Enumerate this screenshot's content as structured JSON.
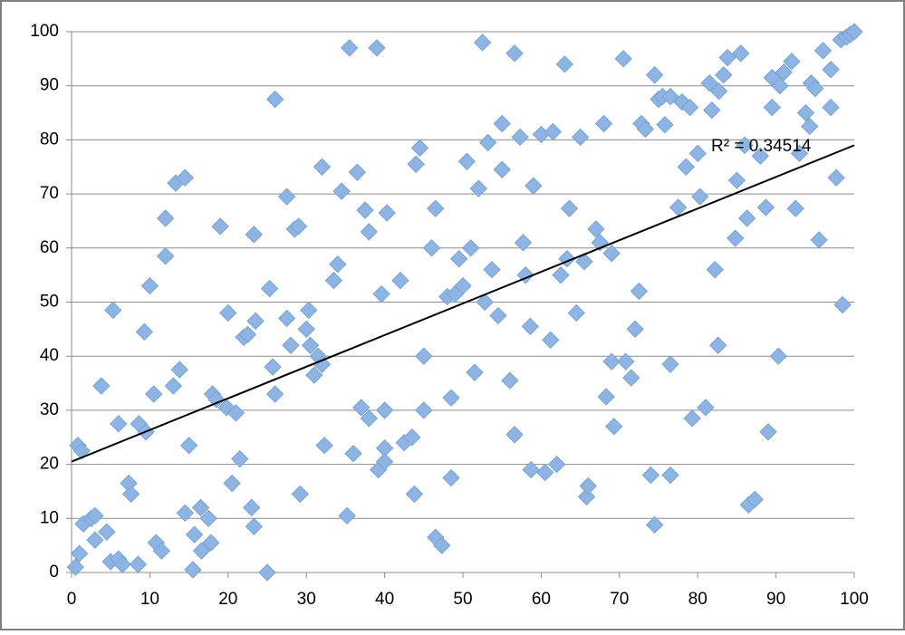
{
  "chart_data": {
    "type": "scatter",
    "annotation": "R² = 0.34514",
    "color": "#8db4e2",
    "trendline": {
      "x": [
        0,
        100
      ],
      "y": [
        20.5,
        79
      ],
      "color": "#000000"
    },
    "x": [
      0.5,
      1,
      0.8,
      1.3,
      1.5,
      2.5,
      3,
      3,
      3.8,
      4.5,
      5,
      5.3,
      6,
      6,
      6.5,
      7.3,
      7.6,
      8.5,
      8.6,
      9.3,
      9.5,
      10,
      10.5,
      10.8,
      11.5,
      12,
      12,
      13,
      13.3,
      13.8,
      14.5,
      14.5,
      15,
      15.5,
      15.7,
      16.5,
      16.6,
      17.5,
      17.8,
      18,
      18.5,
      19,
      19.8,
      20,
      20.5,
      21,
      21.5,
      22,
      22.5,
      23,
      23.3,
      23.3,
      23.5,
      25,
      25.3,
      25.7,
      26,
      26,
      27.5,
      27.5,
      28,
      28.5,
      29,
      29.2,
      30,
      30.3,
      30.5,
      31,
      31.5,
      32,
      32,
      32.3,
      33.5,
      34,
      34.5,
      35.2,
      35.5,
      36,
      36.5,
      37,
      37.5,
      38,
      38,
      39,
      39.2,
      39.6,
      40,
      40,
      40,
      40.3,
      42,
      42.5,
      43.5,
      43.8,
      44,
      44.5,
      45,
      45,
      46,
      46.5,
      46.5,
      47.3,
      48,
      48.5,
      48.5,
      49,
      49.5,
      50,
      50.5,
      51,
      51.5,
      52,
      52.5,
      52.8,
      53.2,
      53.7,
      54.5,
      55,
      55,
      56,
      56.6,
      56.6,
      57.3,
      57.7,
      58,
      58.6,
      58.7,
      59,
      60,
      60.5,
      61.2,
      61.5,
      62,
      62.5,
      63,
      63.3,
      63.6,
      64.5,
      65,
      65.5,
      65.8,
      66,
      67,
      67.5,
      68,
      68.3,
      69,
      69,
      69.3,
      70.5,
      70.8,
      71.5,
      72,
      72.5,
      72.8,
      73.3,
      74,
      74.5,
      74.5,
      75,
      75.5,
      75.8,
      76.5,
      76.5,
      76.5,
      77.5,
      78,
      78.5,
      79,
      79.3,
      80,
      80.3,
      81,
      81.5,
      81.8,
      82.2,
      82.6,
      82.7,
      83.3,
      83.8,
      84.8,
      85,
      85.5,
      86,
      86.3,
      86.5,
      87.3,
      88,
      88.7,
      89,
      89.5,
      89.5,
      90.3,
      90.5,
      91,
      92,
      92.5,
      93,
      93.8,
      94.3,
      94.5,
      95,
      95.5,
      96,
      97,
      97,
      97.7,
      98.3,
      98.5,
      99,
      99.5,
      100
    ],
    "values": [
      1,
      3.5,
      23.5,
      22.5,
      9,
      10,
      10.5,
      6,
      34.5,
      7.5,
      2,
      48.5,
      2.5,
      27.5,
      1.5,
      16.5,
      14.5,
      1.5,
      27.5,
      44.5,
      26,
      53,
      33,
      5.5,
      4,
      65.5,
      58.5,
      34.5,
      72,
      37.5,
      73,
      11,
      23.5,
      0.5,
      7,
      12,
      4,
      10,
      5.5,
      33,
      32,
      64,
      30.5,
      48,
      16.5,
      29.5,
      21,
      43.5,
      44,
      12,
      8.5,
      62.5,
      46.5,
      0,
      52.5,
      38,
      33,
      87.5,
      47,
      69.5,
      42,
      63.5,
      64,
      14.5,
      45,
      48.5,
      42,
      36.5,
      40,
      75,
      38.5,
      23.5,
      54,
      57,
      70.5,
      10.5,
      97,
      22,
      74,
      30.5,
      67,
      63,
      28.5,
      97,
      19,
      51.5,
      23,
      20.5,
      30,
      66.5,
      54,
      24,
      25,
      14.5,
      75.5,
      78.5,
      40,
      30,
      60,
      67.3,
      6.5,
      5,
      51,
      32.3,
      17.5,
      51.5,
      58,
      53,
      76,
      60,
      37,
      71,
      98,
      50,
      79.5,
      56,
      47.5,
      74.5,
      83,
      35.5,
      96,
      25.5,
      80.5,
      61,
      55,
      45.5,
      19,
      71.5,
      81,
      18.5,
      43,
      81.5,
      20,
      55,
      94,
      58,
      67.3,
      48,
      80.5,
      57.5,
      14,
      16,
      63.5,
      61,
      83,
      32.5,
      39,
      59,
      27,
      95,
      39,
      36,
      45,
      52,
      83,
      82,
      18,
      92,
      8.8,
      87.5,
      88,
      82.8,
      88,
      38.5,
      18,
      67.5,
      87,
      75,
      86,
      28.5,
      77.5,
      69.5,
      30.5,
      90.5,
      85.5,
      56,
      42,
      89,
      92,
      95.2,
      61.8,
      72.5,
      96,
      79,
      65.5,
      12.5,
      13.5,
      77,
      67.5,
      26,
      86,
      91.5,
      40,
      90,
      92.5,
      94.5,
      67.3,
      77.5,
      85,
      82.5,
      90.5,
      89.5,
      61.5,
      96.5,
      93,
      86,
      73,
      98.5,
      49.5,
      99,
      99.5,
      100
    ],
    "xlim": [
      0,
      100
    ],
    "ylim": [
      0,
      100
    ],
    "xticks": [
      0,
      10,
      20,
      30,
      40,
      50,
      60,
      70,
      80,
      90,
      100
    ],
    "yticks": [
      0,
      10,
      20,
      30,
      40,
      50,
      60,
      70,
      80,
      90,
      100
    ],
    "grid": true
  }
}
